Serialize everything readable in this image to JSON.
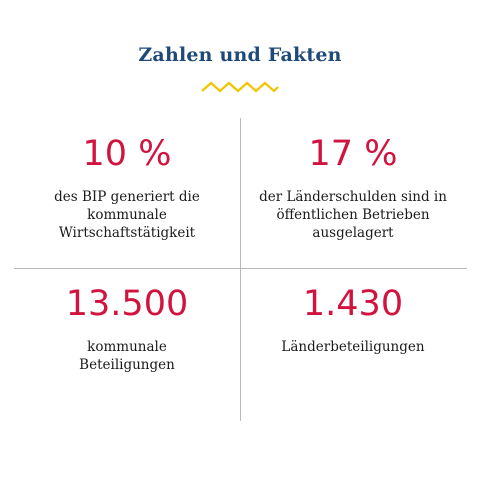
{
  "title": "Zahlen und Fakten",
  "accent_color": "#d1143f",
  "title_color": "#1f4a78",
  "zigzag_color": "#f2c400",
  "facts": [
    {
      "value": "10 %",
      "description": "des BIP generiert die kommunale Wirtschaftstätigkeit"
    },
    {
      "value": "17 %",
      "description": "der Länderschulden sind in öffentlichen Betrieben ausgelagert"
    },
    {
      "value": "13.500",
      "description": "kommunale Beteiligungen"
    },
    {
      "value": "1.430",
      "description": "Länderbeteiligungen"
    }
  ]
}
